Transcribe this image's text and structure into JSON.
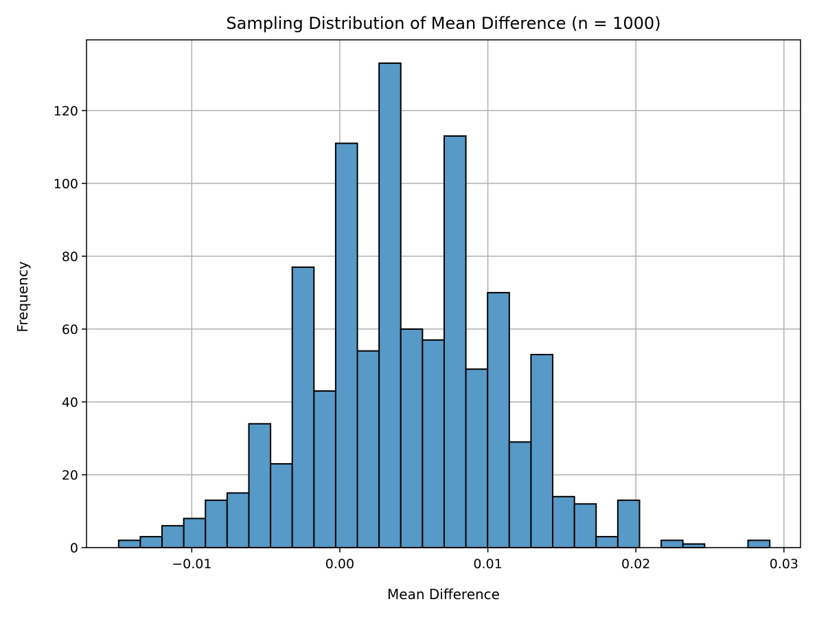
{
  "chart_data": {
    "type": "bar",
    "title": "Sampling Distribution of Mean Difference (n = 1000)",
    "xlabel": "Mean Difference",
    "ylabel": "Frequency",
    "bin_start": -0.01494,
    "bin_end": 0.02904,
    "values": [
      2,
      3,
      6,
      8,
      13,
      15,
      34,
      23,
      77,
      43,
      111,
      54,
      133,
      60,
      57,
      113,
      49,
      70,
      29,
      53,
      14,
      12,
      3,
      13,
      0,
      2,
      1,
      0,
      0,
      2
    ],
    "xlim": [
      -0.01711,
      0.03112
    ],
    "ylim": [
      0,
      139.4
    ],
    "xticks": [
      -0.01,
      0.0,
      0.01,
      0.02,
      0.03
    ],
    "xtick_labels": [
      "−0.01",
      "0.00",
      "0.01",
      "0.02",
      "0.03"
    ],
    "yticks": [
      0,
      20,
      40,
      60,
      80,
      100,
      120
    ],
    "ytick_labels": [
      "0",
      "20",
      "40",
      "60",
      "80",
      "100",
      "120"
    ],
    "grid": true,
    "bar_color": "#5799c7",
    "edge_color": "#000000"
  }
}
